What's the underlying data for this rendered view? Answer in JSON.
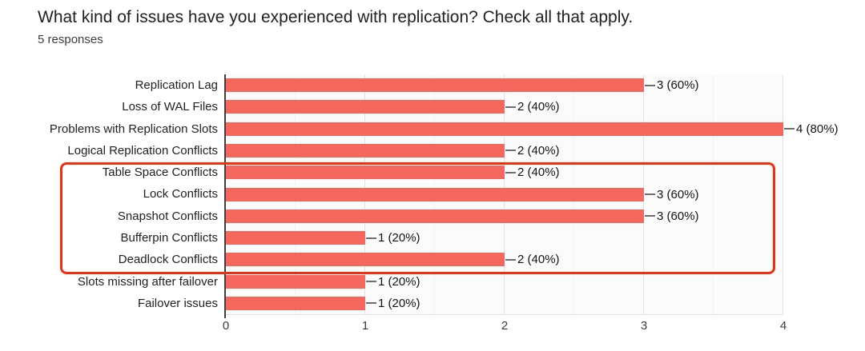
{
  "header": {
    "title": "What kind of issues have you experienced with replication? Check all that apply.",
    "responses": "5 responses"
  },
  "chart_data": {
    "type": "bar",
    "orientation": "horizontal",
    "title": "What kind of issues have you experienced with replication? Check all that apply.",
    "subtitle": "5 responses",
    "categories": [
      "Replication Lag",
      "Loss of WAL Files",
      "Problems with Replication Slots",
      "Logical Replication Conflicts",
      "Table Space Conflicts",
      "Lock Conflicts",
      "Snapshot Conflicts",
      "Bufferpin Conflicts",
      "Deadlock Conflicts",
      "Slots missing after failover",
      "Failover issues"
    ],
    "values": [
      3,
      2,
      4,
      2,
      2,
      3,
      3,
      1,
      2,
      1,
      1
    ],
    "value_labels": [
      "3 (60%)",
      "2 (40%)",
      "4 (80%)",
      "2 (40%)",
      "2 (40%)",
      "3 (60%)",
      "3 (60%)",
      "1 (20%)",
      "2 (40%)",
      "1 (20%)",
      "1 (20%)"
    ],
    "xlim": [
      0,
      4
    ],
    "x_ticks": [
      "0",
      "1",
      "2",
      "3",
      "4"
    ],
    "grid": "vertical gridlines, minor every 0.5, major every 1",
    "legend": "none",
    "bar_color": "#f5675c"
  },
  "annotation": {
    "shape": "red-rounded-rectangle",
    "color": "#f02e10",
    "highlighted_categories": [
      "Table Space Conflicts",
      "Lock Conflicts",
      "Snapshot Conflicts",
      "Bufferpin Conflicts",
      "Deadlock Conflicts"
    ]
  }
}
